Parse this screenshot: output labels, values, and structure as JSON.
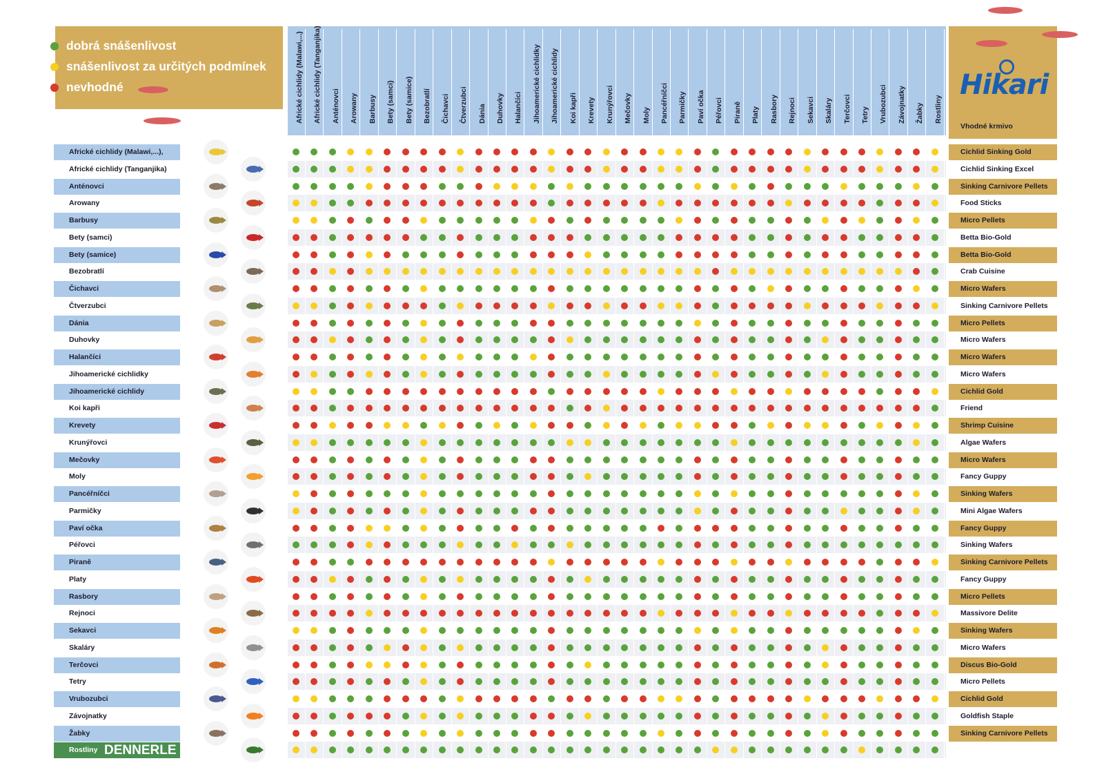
{
  "legend": [
    {
      "label": "dobrá snášenlivost",
      "color": "#5aa33b"
    },
    {
      "label": "snášenlivost za určitých podmínek",
      "color": "#f7cf21"
    },
    {
      "label": "nevhodné",
      "color": "#d83a2c"
    }
  ],
  "brand": {
    "name": "Hikari",
    "caption": "Vhodné krmivo"
  },
  "columns": [
    "Africké cichlidy (Malawi,...)",
    "Africké cichlidy (Tanganjika)",
    "Anténovci",
    "Arowany",
    "Barbusy",
    "Bety (samci)",
    "Bety (samice)",
    "Bezobratlí",
    "Čichavci",
    "Čtverzubci",
    "Dánia",
    "Duhovky",
    "Halančíci",
    "Jihoamerické cichlidky",
    "Jihoamerické cichlidy",
    "Koi kapři",
    "Krevety",
    "Krunýřovci",
    "Mečovky",
    "Moly",
    "Pancéřníčci",
    "Parmičky",
    "Paví očka",
    "Péřovci",
    "Piraně",
    "Platy",
    "Rasbory",
    "Rejnoci",
    "Sekavci",
    "Skaláry",
    "Terčovci",
    "Tetry",
    "Vrubozubci",
    "Závojnatky",
    "Žabky",
    "Rostliny"
  ],
  "rows": [
    {
      "label": "Africké cichlidy (Malawi,...),",
      "food": "Cichlid Sinking Gold",
      "fish_color": "#e8c83a",
      "cells": "GGGYYRRRRYRRRRYRRYRRYYRGRRRRYRRRYRRY"
    },
    {
      "label": "Africké cichlidy (Tanganjika)",
      "food": "Cichlid Sinking Excel",
      "fish_color": "#4a6bb0",
      "cells": "GGGYYRRRRYRRRRYRRYRRYYRGRRRRYRRRYRRY"
    },
    {
      "label": "Anténovci",
      "food": "Sinking Carnivore Pellets",
      "fish_color": "#8a7a6a",
      "cells": "GGGGYRRRGGRYYYGYGGGGGGYGYGRGGGYGGGYG"
    },
    {
      "label": "Arowany",
      "food": "Food Sticks",
      "fish_color": "#c4452a",
      "cells": "YYGGRRRRRRRRRRGRRRRRYRRRRRRYRRRRGRRY"
    },
    {
      "label": "Barbusy",
      "food": "Micro Pellets",
      "fish_color": "#9a8a40",
      "cells": "YYGRGRRYGGGGGYRGRGGGGYRGRGGRGYRYGRYG"
    },
    {
      "label": "Bety (samci)",
      "food": "Betta Bio-Gold",
      "fish_color": "#c8282a",
      "cells": "RRGRRRRGGRGGGRRRGGGGGRRRRGGRGRRGGRRG"
    },
    {
      "label": "Bety (samice)",
      "food": "Betta Bio-Gold",
      "fish_color": "#2a4aa8",
      "cells": "RRGRYRGGGRGGGRRRYGGGGRRRRGGRGRRGGRRG"
    },
    {
      "label": "Bezobratlí",
      "food": "Crab Cuisine",
      "fish_color": "#7a6a5a",
      "cells": "RRYRYYYYYYYYYYYYYYYYYYYRYYYYYYYYYYRG"
    },
    {
      "label": "Čichavci",
      "food": "Micro Wafers",
      "fish_color": "#b09070",
      "cells": "RRGRGRGYGGGGGGRGGGGGGGRGRGYRGGRGGRYG"
    },
    {
      "label": "Čtverzubci",
      "food": "Sinking Carnivore Pellets",
      "fish_color": "#6a7a4a",
      "cells": "YYGRYRRRGYRRRRYRRYRRYYRGRRRRYRRRYRRY"
    },
    {
      "label": "Dánia",
      "food": "Micro Pellets",
      "fish_color": "#c8a060",
      "cells": "RRGRGRGYGRGGGRRGGGGGGGYGRGGRGGRGGRGG"
    },
    {
      "label": "Duhovky",
      "food": "Micro Wafers",
      "fish_color": "#e0a040",
      "cells": "RRYRGRGYGRGGGGRYGGGGGGRGRGGRGYRGGRGG"
    },
    {
      "label": "Halančíci",
      "food": "Micro Wafers",
      "fish_color": "#d0402a",
      "cells": "RRGRGRGYGYGGGYRGGGGGGGRGRGGRGGRGGRGG"
    },
    {
      "label": "Jihoamerické cichlidky",
      "food": "Micro Wafers",
      "fish_color": "#e08030",
      "cells": "RYGRYRGYGRGGGGRGGYGGGGRYRGGRGYRGGRGG"
    },
    {
      "label": "Jihoamerické cichlidy",
      "food": "Cichlid Gold",
      "fish_color": "#6a7050",
      "cells": "YYGGRRRRRRRRRRGRRRRRYRRRYRRYRRRRGRRY"
    },
    {
      "label": "Koi kapři",
      "food": "Friend",
      "fish_color": "#d08050",
      "cells": "RRGRRRRRRRRRRRRGRYRRRRRRRRRRRRRRRRRG"
    },
    {
      "label": "Krevety",
      "food": "Shrimp Cuisine",
      "fish_color": "#c83030",
      "cells": "RRYRRYYGYRGYGYRRGYRYGYYRRGYRYYRGYRYG"
    },
    {
      "label": "Krunýřovci",
      "food": "Algae Wafers",
      "fish_color": "#5a6040",
      "cells": "YYGGGGGYGGGGGGGYYGGGGGGGYGGGGGGGGGYG"
    },
    {
      "label": "Mečovky",
      "food": "Micro Wafers",
      "fish_color": "#e05030",
      "cells": "RRGRGRGYGRGGGRRGGGGGGGRGRGGRGGRGGRGG"
    },
    {
      "label": "Moly",
      "food": "Fancy Guppy",
      "fish_color": "#f0a030",
      "cells": "RRGRGRGYGRGGGRRGYGGGGGRGRGGRGGRGGRGG"
    },
    {
      "label": "Pancéřníčci",
      "food": "Sinking Wafers",
      "fish_color": "#b0a090",
      "cells": "YRGRGGGYGGGGGGRGGGGGGGYGYGGRGGGGGRYG"
    },
    {
      "label": "Parmičky",
      "food": "Mini Algae Wafers",
      "fish_color": "#303030",
      "cells": "YRGRGRGYGRGGGRRGGGGGGGYGRGGRGGYGGRYG"
    },
    {
      "label": "Paví očka",
      "food": "Fancy Guppy",
      "fish_color": "#b08040",
      "cells": "RRGRYYGYGRGGRGRGGGGGRGRRRGGRGGRGGRGG"
    },
    {
      "label": "Péřovci",
      "food": "Sinking Wafers",
      "fish_color": "#707070",
      "cells": "GGGRYRGGGYGGYGGYGGGGGGRGRGGRGGGGGGGG"
    },
    {
      "label": "Piraně",
      "food": "Sinking Carnivore Pellets",
      "fish_color": "#4a6080",
      "cells": "RRGGRRRRRRRRRRYRRRRRYRRRYRRYRRRRGRRY"
    },
    {
      "label": "Platy",
      "food": "Fancy Guppy",
      "fish_color": "#e04a20",
      "cells": "RRYRGRGYGYGGGGRGYGGGGGRGRGGRGGRGGRGG"
    },
    {
      "label": "Rasbory",
      "food": "Micro Pellets",
      "fish_color": "#c0a080",
      "cells": "RRGRGRGYGRGGGGRGGGGGGGRGRGGRGGRGGRGG"
    },
    {
      "label": "Rejnoci",
      "food": "Massivore Delite",
      "fish_color": "#8a6a4a",
      "cells": "RRRRYRRRRRRRRRRRRRRRYRRRYRRYRRRRGRRY"
    },
    {
      "label": "Sekavci",
      "food": "Sinking Wafers",
      "fish_color": "#e08020",
      "cells": "YYGRGGGYGGGGGGRGGGGGGGYGYGGRGGGGGRYG"
    },
    {
      "label": "Skaláry",
      "food": "Micro Wafers",
      "fish_color": "#909090",
      "cells": "RRGRGYRYGYGGGGRGGGGGGGRGRGGRGYRGGRGG"
    },
    {
      "label": "Terčovci",
      "food": "Discus Bio-Gold",
      "fish_color": "#d07030",
      "cells": "RRGRYYRYGRGGGGRGYGGGGGRGRGGRGYRGGRGG"
    },
    {
      "label": "Tetry",
      "food": "Micro Pellets",
      "fish_color": "#3060c0",
      "cells": "RRGRGRGYGRGGGGRGGGGGGGRGRGGRGGRGGRGG"
    },
    {
      "label": "Vrubozubci",
      "food": "Cichlid Gold",
      "fish_color": "#4a5a90",
      "cells": "YYGGGRRRGYRRRRGRRGRRYYRGRRRRYRRRYRRY"
    },
    {
      "label": "Závojnatky",
      "food": "Goldfish Staple",
      "fish_color": "#f08020",
      "cells": "RRGRRRGYGYGGGRRGYGGGGGRGRGGRGYRGGRGG"
    },
    {
      "label": "Žabky",
      "food": "Sinking Carnivore Pellets",
      "fish_color": "#8a7060",
      "cells": "RRGRGRGYGYGGGRRGGGGGYGRGRGGRGYRGGRGG"
    },
    {
      "label": "Rostliny",
      "brand_word": "DENNERLE",
      "food": "",
      "fish_color": "#3a7a30",
      "cells": "YYGGGGGGGGGGGGGGGGGGGGGYYGGGGGGYGGGG"
    }
  ],
  "colors": {
    "G": "#5aa33b",
    "Y": "#f7cf21",
    "R": "#d83a2c"
  }
}
